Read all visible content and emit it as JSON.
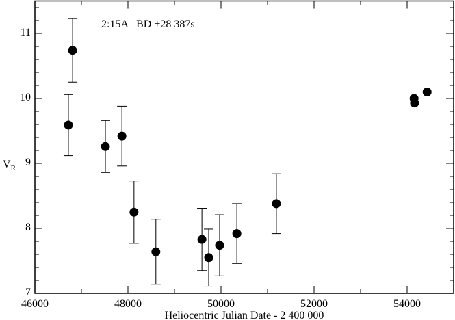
{
  "chart_data": {
    "type": "scatter",
    "title": "",
    "annotation": "2:15A   BD +28 387s",
    "xlabel": "Heliocentric Julian Date - 2 400 000",
    "ylabel_main": "V",
    "ylabel_sub": "R",
    "xlim": [
      46000,
      55000
    ],
    "ylim": [
      7,
      11.5
    ],
    "xticks": [
      46000,
      48000,
      50000,
      52000,
      54000
    ],
    "xtick_labels": [
      "46000",
      "48000",
      "50000",
      "52000",
      "54000"
    ],
    "yticks": [
      7,
      8,
      9,
      10,
      11
    ],
    "ytick_labels": [
      "7",
      "8",
      "9",
      "10",
      "11"
    ],
    "grid": false,
    "marker_color": "#000000",
    "points": [
      {
        "x": 46720,
        "y": 9.59,
        "err": 0.47
      },
      {
        "x": 46810,
        "y": 10.74,
        "err": 0.49
      },
      {
        "x": 47515,
        "y": 9.26,
        "err": 0.4
      },
      {
        "x": 47870,
        "y": 9.42,
        "err": 0.46
      },
      {
        "x": 48130,
        "y": 8.25,
        "err": 0.48
      },
      {
        "x": 48600,
        "y": 7.64,
        "err": 0.5
      },
      {
        "x": 49590,
        "y": 7.83,
        "err": 0.48
      },
      {
        "x": 49735,
        "y": 7.55,
        "err": 0.44
      },
      {
        "x": 49970,
        "y": 7.74,
        "err": 0.47
      },
      {
        "x": 50340,
        "y": 7.92,
        "err": 0.46
      },
      {
        "x": 51190,
        "y": 8.38,
        "err": 0.46
      },
      {
        "x": 54150,
        "y": 10.0,
        "err": null
      },
      {
        "x": 54160,
        "y": 9.93,
        "err": null
      },
      {
        "x": 54430,
        "y": 10.1,
        "err": null
      }
    ]
  }
}
